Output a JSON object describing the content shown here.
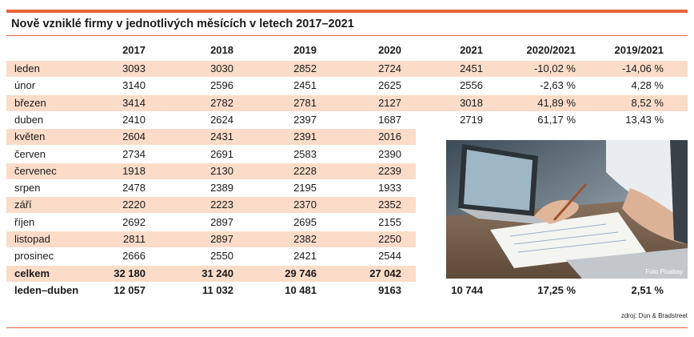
{
  "title": "Nově vzniklé firmy v jednotlivých měsících v letech 2017–2021",
  "headers": [
    "2017",
    "2018",
    "2019",
    "2020",
    "2021",
    "2020/2021",
    "2019/2021"
  ],
  "rows": [
    {
      "label": "leden",
      "values": [
        "3093",
        "3030",
        "2852",
        "2724",
        "2451",
        "-10,02 %",
        "-14,06 %"
      ]
    },
    {
      "label": "únor",
      "values": [
        "3140",
        "2596",
        "2451",
        "2625",
        "2556",
        "-2,63 %",
        "4,28 %"
      ]
    },
    {
      "label": "březen",
      "values": [
        "3414",
        "2782",
        "2781",
        "2127",
        "3018",
        "41,89 %",
        "8,52 %"
      ]
    },
    {
      "label": "duben",
      "values": [
        "2410",
        "2624",
        "2397",
        "1687",
        "2719",
        "61,17 %",
        "13,43 %"
      ]
    },
    {
      "label": "květen",
      "values": [
        "2604",
        "2431",
        "2391",
        "2016"
      ]
    },
    {
      "label": "červen",
      "values": [
        "2734",
        "2691",
        "2583",
        "2390"
      ]
    },
    {
      "label": "červenec",
      "values": [
        "1918",
        "2130",
        "2228",
        "2239"
      ]
    },
    {
      "label": "srpen",
      "values": [
        "2478",
        "2389",
        "2195",
        "1933"
      ]
    },
    {
      "label": "září",
      "values": [
        "2220",
        "2223",
        "2370",
        "2352"
      ]
    },
    {
      "label": "říjen",
      "values": [
        "2692",
        "2897",
        "2695",
        "2155"
      ]
    },
    {
      "label": "listopad",
      "values": [
        "2811",
        "2897",
        "2382",
        "2250"
      ]
    },
    {
      "label": "prosinec",
      "values": [
        "2666",
        "2550",
        "2421",
        "2544"
      ]
    }
  ],
  "total": {
    "label": "celkem",
    "values": [
      "32 180",
      "31 240",
      "29 746",
      "27 042"
    ]
  },
  "jan_apr": {
    "label": "leden–duben",
    "values": [
      "12 057",
      "11 032",
      "10 481",
      "9163",
      "10 744",
      "17,25 %",
      "2,51 %"
    ]
  },
  "photo_credit": "Foto Pixabay",
  "source": "zdroj: Dun & Bradstreet",
  "colors": {
    "accent": "#e8643a",
    "band": "#fbdcc8"
  }
}
